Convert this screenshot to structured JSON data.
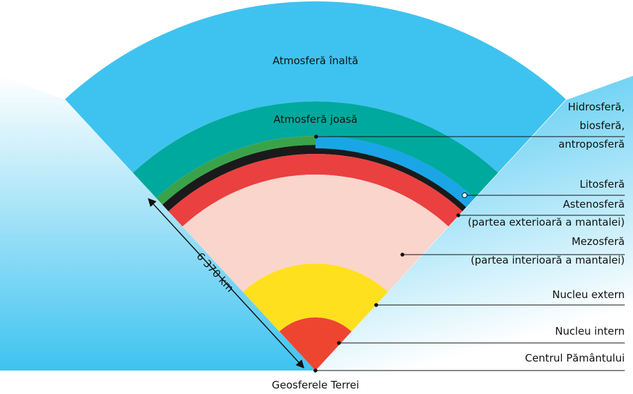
{
  "title": "Geosferele Terrei",
  "layers": {
    "upper_atmosphere": "Atmosferă înaltă",
    "lower_atmosphere": "Atmosferă joasă"
  },
  "radius_label": "6 370 km",
  "labels": [
    {
      "lines": [
        "Hidrosferă,",
        "biosferă,",
        "antroposferă"
      ]
    },
    {
      "lines": [
        "Litosferă"
      ]
    },
    {
      "lines": [
        "Astenosferă",
        "(partea exterioară a mantalei)"
      ]
    },
    {
      "lines": [
        "Mezosferă",
        "(partea interioară a mantalei)"
      ]
    },
    {
      "lines": [
        "Nucleu extern"
      ]
    },
    {
      "lines": [
        "Nucleu intern"
      ]
    },
    {
      "lines": [
        "Centrul Pământului"
      ]
    }
  ]
}
